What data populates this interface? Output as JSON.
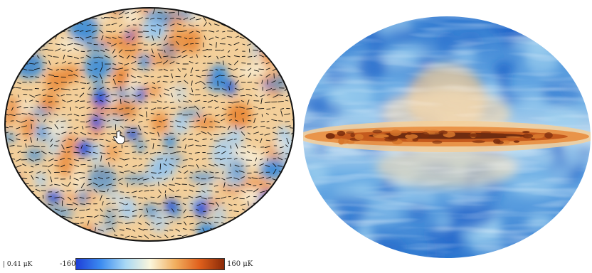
{
  "legend": {
    "vector_scale_label": "| 0.41 μK",
    "colorbar_min": "-160",
    "colorbar_max": "160 μK",
    "colorbar_colors": [
      "#1e3fd8",
      "#3c8cf0",
      "#a8d8f4",
      "#fbf6dc",
      "#f2b060",
      "#e0601c",
      "#8a2a08"
    ]
  },
  "maps": {
    "left": {
      "name": "cmb-polarization-map",
      "icon": "hand-pointer-icon"
    },
    "right": {
      "name": "dust-polarization-map"
    }
  },
  "colors": {
    "blue": "#3f8ed8",
    "light_blue": "#a8cfef",
    "cream": "#f6ead0",
    "orange": "#e98a3a",
    "dark_brown": "#6a2a10"
  }
}
